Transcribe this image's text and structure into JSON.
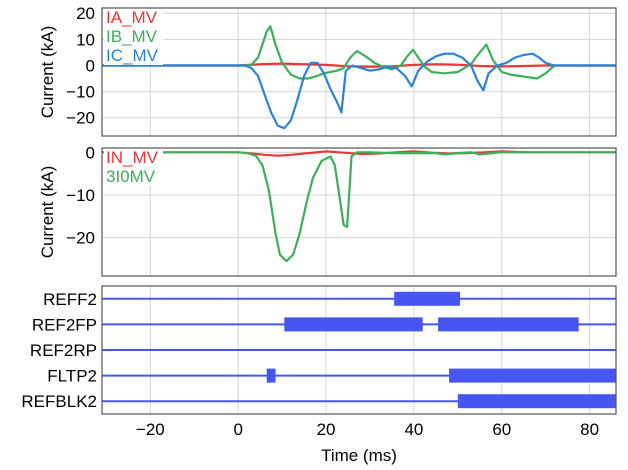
{
  "chart_data": [
    {
      "type": "line",
      "ylabel": "Current (kA)",
      "xlim": [
        -31,
        86
      ],
      "ylim": [
        -27,
        22
      ],
      "yticks": [
        20,
        10,
        0,
        -10,
        -20
      ],
      "xticks": [
        -20,
        0,
        20,
        40,
        60,
        80
      ],
      "grid": true,
      "legend_position": "top-left",
      "series": [
        {
          "name": "IA_MV",
          "color": "#e8383a",
          "x": [
            -31,
            0,
            5,
            10,
            15,
            20,
            25,
            30,
            35,
            40,
            45,
            50,
            55,
            60,
            65,
            70,
            86
          ],
          "y": [
            0,
            0,
            0.5,
            0.7,
            0.5,
            0.2,
            -0.3,
            -0.5,
            -0.3,
            0.2,
            0.5,
            0.3,
            -0.2,
            -0.4,
            -0.2,
            0,
            0
          ]
        },
        {
          "name": "IB_MV",
          "color": "#3fae5a",
          "x": [
            -31,
            0,
            1.5,
            3,
            4.5,
            5.5,
            6.5,
            7.3,
            8.5,
            10,
            12,
            14,
            16,
            18,
            19.5,
            21,
            22.5,
            24,
            25.5,
            27,
            29,
            31,
            33,
            35,
            37,
            38.5,
            39.8,
            41,
            42.5,
            44,
            47,
            50,
            53,
            55,
            56.5,
            58,
            60,
            62,
            64,
            66,
            68,
            70,
            72,
            86
          ],
          "y": [
            0,
            0,
            0,
            0.2,
            3,
            8,
            13,
            15,
            8,
            1,
            -3.5,
            -5,
            -5,
            -4,
            -3,
            -2.5,
            -2,
            -1,
            3,
            5.5,
            3.5,
            1,
            -0.5,
            -1.5,
            0,
            3.5,
            6,
            3,
            -0.5,
            -2.5,
            -3,
            -2.5,
            0.5,
            5,
            8,
            2,
            -2.5,
            -3.5,
            -4,
            -4.5,
            -5,
            -3,
            0,
            0
          ]
        },
        {
          "name": "IC_MV",
          "color": "#2d82d8",
          "x": [
            -31,
            0,
            1.5,
            3,
            4.5,
            6,
            7.5,
            9,
            10.5,
            12,
            13.5,
            15,
            16.5,
            18,
            19.5,
            21,
            22.5,
            23.5,
            24.5,
            26,
            28,
            30,
            32,
            34,
            36,
            38,
            39.5,
            41,
            43,
            45,
            47,
            49,
            51,
            53,
            54.5,
            55.8,
            57,
            59,
            61,
            63,
            65,
            67,
            68.5,
            70,
            72,
            86
          ],
          "y": [
            0,
            0,
            0,
            -1,
            -4,
            -11,
            -18,
            -23,
            -24,
            -21,
            -13,
            -4,
            1,
            1,
            -3,
            -9,
            -14,
            -18,
            -2,
            0,
            -1,
            -2,
            -1.5,
            -0.5,
            -1,
            -4,
            -8,
            -2,
            1.5,
            3.5,
            4.5,
            4.5,
            3,
            0,
            -6,
            -9.5,
            -3,
            0,
            1,
            3,
            4,
            4.5,
            3,
            1,
            0,
            0
          ]
        }
      ]
    },
    {
      "type": "line",
      "ylabel": "Current (kA)",
      "xlim": [
        -31,
        86
      ],
      "ylim": [
        -29,
        1
      ],
      "yticks": [
        0,
        -10,
        -20
      ],
      "xticks": [
        -20,
        0,
        20,
        40,
        60,
        80
      ],
      "grid": true,
      "legend_position": "top-left",
      "series": [
        {
          "name": "IN_MV",
          "color": "#e8383a",
          "x": [
            -31,
            0,
            3,
            6,
            9,
            12,
            16,
            20,
            24,
            28,
            32,
            36,
            40,
            44,
            48,
            52,
            56,
            60,
            66,
            72,
            86
          ],
          "y": [
            0,
            0,
            -0.3,
            -0.6,
            -0.8,
            -0.6,
            -0.2,
            0.2,
            -0.1,
            -0.4,
            -0.3,
            0,
            0.2,
            -0.1,
            -0.3,
            -0.2,
            0,
            0.2,
            0,
            0,
            0
          ]
        },
        {
          "name": "3I0MV",
          "color": "#3fae5a",
          "x": [
            -31,
            0,
            2,
            4,
            5.5,
            7,
            8.5,
            9.5,
            11,
            12.5,
            14,
            15.5,
            17,
            19,
            21,
            22,
            23,
            24,
            24.8,
            25.8,
            27,
            30,
            35,
            45,
            47,
            50,
            53,
            55,
            57,
            60,
            70,
            86
          ],
          "y": [
            0,
            0,
            -0.2,
            -0.8,
            -3,
            -9,
            -19,
            -24,
            -25.5,
            -24,
            -19,
            -12,
            -6,
            -2,
            -1,
            -3,
            -10,
            -17,
            -17.5,
            -1,
            0,
            0,
            -0.2,
            -0.2,
            -0.5,
            -0.2,
            0,
            -0.5,
            -0.3,
            0,
            0,
            0
          ]
        }
      ]
    },
    {
      "type": "bar",
      "xlim": [
        -31,
        86
      ],
      "xticks": [
        -20,
        0,
        20,
        40,
        60,
        80
      ],
      "xlabel": "Time (ms)",
      "color": "#4756f0",
      "signals": [
        {
          "name": "REFF2",
          "intervals": [
            [
              35.5,
              50.5
            ]
          ]
        },
        {
          "name": "REF2FP",
          "intervals": [
            [
              10.5,
              42
            ],
            [
              45.5,
              77.5
            ]
          ]
        },
        {
          "name": "REF2RP",
          "intervals": []
        },
        {
          "name": "FLTP2",
          "intervals": [
            [
              6.5,
              8.5
            ],
            [
              48,
              86
            ]
          ]
        },
        {
          "name": "REFBLK2",
          "intervals": [
            [
              50,
              86
            ]
          ]
        }
      ]
    }
  ]
}
